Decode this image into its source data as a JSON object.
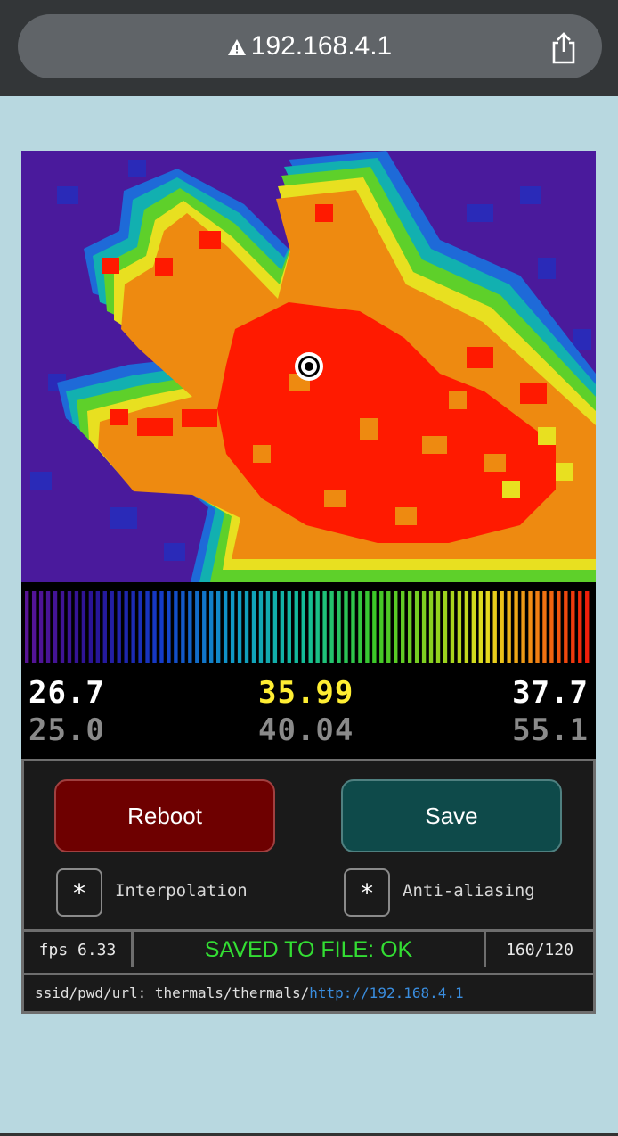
{
  "browser": {
    "url": "192.168.4.1",
    "icons": {
      "warning": "warning-triangle-icon",
      "share": "share-icon"
    }
  },
  "thermal_image": {
    "description_colors": {
      "cold": "#4a1a9c",
      "blue": "#1e4fd0",
      "cyan": "#10b0b8",
      "green": "#5ed02a",
      "yellow": "#e8e020",
      "orange": "#ee8a10",
      "hot": "#ff1a00"
    },
    "crosshair_icon": "target-crosshair-icon"
  },
  "readouts": {
    "min_current": "26.7",
    "center_current": "35.99",
    "max_current": "37.7",
    "min_range": "25.0",
    "center_range": "40.04",
    "max_range": "55.1"
  },
  "controls": {
    "reboot_label": "Reboot",
    "save_label": "Save",
    "interpolation": {
      "mark": "*",
      "label": "Interpolation"
    },
    "antialiasing": {
      "mark": "*",
      "label": "Anti-aliasing"
    }
  },
  "status": {
    "fps": "fps 6.33",
    "message": "SAVED TO FILE: OK",
    "resolution": "160/120"
  },
  "ssid": {
    "prefix": "ssid/pwd/url: thermals/thermals/",
    "link": "http://192.168.4.1"
  }
}
